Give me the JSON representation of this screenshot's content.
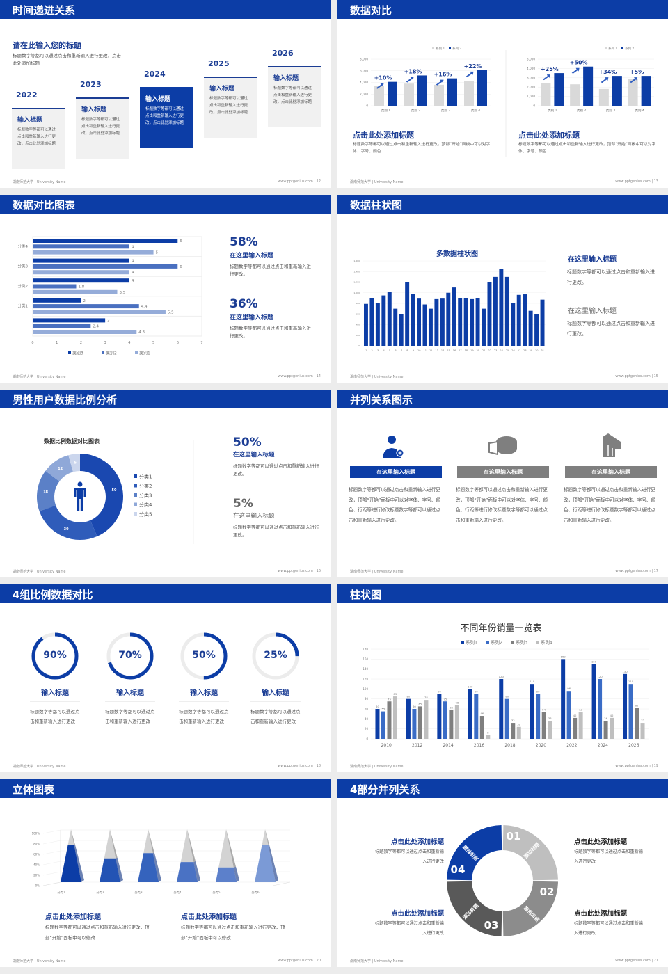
{
  "footer": {
    "left": "湖南师范大学 | University Name",
    "right": "www.pptgenius.com"
  },
  "colors": {
    "brand": "#0c3da6",
    "heading": "#1b3d94",
    "gray": "#7f7f7f",
    "light": "#d9d9d9"
  },
  "slides": [
    {
      "title": "时间递进关系",
      "page": "12",
      "intro_title": "请在此输入您的标题",
      "intro_text": "标题数字等都可以通过点击和重新输入进行更改，点击此处添加标题",
      "items": [
        {
          "year": "2022",
          "title": "输入标题",
          "text": "标题数字等都可以通过点击和重新输入进行更改，点击此处添加标题",
          "active": false
        },
        {
          "year": "2023",
          "title": "输入标题",
          "text": "标题数字等都可以通过点击和重新输入进行更改，点击此处添加标题",
          "active": false
        },
        {
          "year": "2024",
          "title": "输入标题",
          "text": "标题数字等都可以通过点击和重新输入进行更改，点击此处添加标题",
          "active": true
        },
        {
          "year": "2025",
          "title": "输入标题",
          "text": "标题数字等都可以通过点击和重新输入进行更改，点击此处添加标题",
          "active": false
        },
        {
          "year": "2026",
          "title": "输入标题",
          "text": "标题数字等都可以通过点击和重新输入进行更改，点击此处添加标题",
          "active": false
        }
      ]
    },
    {
      "title": "数据对比",
      "page": "13",
      "blocks": [
        {
          "heading": "点击此处添加标题",
          "text": "标题数字等都可以通过点击和重新输入进行更改，顶部“开始”面板中可以对字体、字号、颜色"
        },
        {
          "heading": "点击此处添加标题",
          "text": "标题数字等都可以通过点击和重新输入进行更改，顶部“开始”面板中可以对字体、字号、颜色"
        }
      ]
    },
    {
      "title": "数据对比图表",
      "page": "14",
      "stats": [
        {
          "value": "58%",
          "heading": "在这里输入标题",
          "text": "标题数字等都可以通过点击和重新输入进行更改。"
        },
        {
          "value": "36%",
          "heading": "在这里输入标题",
          "text": "标题数字等都可以通过点击和重新输入进行更改。"
        }
      ]
    },
    {
      "title": "数据柱状图",
      "page": "15",
      "blocks": [
        {
          "heading": "在这里输入标题",
          "text": "标题数字等都可以通过点击和重新输入进行更改。"
        },
        {
          "heading": "在这里输入标题",
          "text": "标题数字等都可以通过点击和重新输入进行更改。"
        }
      ]
    },
    {
      "title": "男性用户数据比例分析",
      "page": "16",
      "stats": [
        {
          "value": "50%",
          "heading": "在这里输入标题",
          "text": "标题数字等都可以通过点击和重新输入进行更改。"
        },
        {
          "value": "5%",
          "heading": "在这里输入标题",
          "text": "标题数字等都可以通过点击和重新输入进行更改。"
        }
      ],
      "icon": "male-person-icon"
    },
    {
      "title": "并列关系图示",
      "page": "17",
      "columns": [
        {
          "icon": "female-user-add-icon",
          "heading": "在这里输入标题",
          "text": "标题数字等都可以通过点击和重新输入进行更改，顶部“开始”面板中可以对字体、字号、颜色、行距等进行修改标题数字等都可以通过点击和重新输入进行更改。",
          "active": true
        },
        {
          "icon": "cheese-pie-icon",
          "heading": "在这里输入标题",
          "text": "标题数字等都可以通过点击和重新输入进行更改，顶部“开始”面板中可以对字体、字号、颜色、行距等进行修改标题数字等都可以通过点击和重新输入进行更改。",
          "active": false
        },
        {
          "icon": "house-chart-icon",
          "heading": "在这里输入标题",
          "text": "标题数字等都可以通过点击和重新输入进行更改，顶部“开始”面板中可以对字体、字号、颜色、行距等进行修改标题数字等都可以通过点击和重新输入进行更改。",
          "active": false
        }
      ]
    },
    {
      "title": "4组比例数据对比",
      "page": "18",
      "rings": [
        {
          "value": 90,
          "label": "90%",
          "heading": "输入标题",
          "text": "标题数字等都可以通过点击和重新输入进行更改"
        },
        {
          "value": 70,
          "label": "70%",
          "heading": "输入标题",
          "text": "标题数字等都可以通过点击和重新输入进行更改"
        },
        {
          "value": 50,
          "label": "50%",
          "heading": "输入标题",
          "text": "标题数字等都可以通过点击和重新输入进行更改"
        },
        {
          "value": 25,
          "label": "25%",
          "heading": "输入标题",
          "text": "标题数字等都可以通过点击和重新输入进行更改"
        }
      ]
    },
    {
      "title": "柱状图",
      "page": "19"
    },
    {
      "title": "立体图表",
      "page": "20",
      "blocks": [
        {
          "heading": "点击此处添加标题",
          "text": "标题数字等都可以通过点击和重新输入进行更改，顶部“开始”面板中可以修改"
        },
        {
          "heading": "点击此处添加标题",
          "text": "标题数字等都可以通过点击和重新输入进行更改，顶部“开始”面板中可以修改"
        }
      ]
    },
    {
      "title": "4部分并列关系",
      "page": "21",
      "segments": [
        {
          "num": "01",
          "label": "添加标题",
          "color": "#bfbfbf"
        },
        {
          "num": "02",
          "label": "添加标题",
          "color": "#8c8c8c"
        },
        {
          "num": "03",
          "label": "添加标题",
          "color": "#595959"
        },
        {
          "num": "04",
          "label": "添加标题",
          "color": "#0c3da6"
        }
      ],
      "blocks": [
        {
          "heading": "点击此处添加标题",
          "text": "标题数字等都可以通过点击和重新输入进行更改",
          "side": "left"
        },
        {
          "heading": "点击此处添加标题",
          "text": "标题数字等都可以通过点击和重新输入进行更改",
          "side": "right"
        },
        {
          "heading": "点击此处添加标题",
          "text": "标题数字等都可以通过点击和重新输入进行更改",
          "side": "left"
        },
        {
          "heading": "点击此处添加标题",
          "text": "标题数字等都可以通过点击和重新输入进行更改",
          "side": "right"
        }
      ]
    }
  ],
  "chart_data": [
    {
      "type": "bar",
      "slide": "13",
      "categories": [
        "类别 1",
        "类别 2",
        "类别 3",
        "类别 4"
      ],
      "series": [
        {
          "name": "系列 1",
          "values": [
            3400,
            3800,
            3600,
            4200
          ],
          "color": "#d9d9d9"
        },
        {
          "name": "系列 2",
          "values": [
            4100,
            5200,
            4700,
            6100
          ],
          "color": "#0c3da6"
        }
      ],
      "annotations": [
        "+10%",
        "+18%",
        "+16%",
        "+22%"
      ],
      "yticks": [
        0,
        2000,
        4000,
        6000,
        8000
      ],
      "ylim": [
        0,
        8000
      ],
      "legend": "top-right"
    },
    {
      "type": "bar",
      "slide": "13",
      "categories": [
        "类别 1",
        "类别 2",
        "类别 3",
        "类别 4"
      ],
      "series": [
        {
          "name": "系列 1",
          "values": [
            2450,
            2300,
            1800,
            2900
          ],
          "color": "#d9d9d9"
        },
        {
          "name": "系列 2",
          "values": [
            3500,
            4200,
            3200,
            3200
          ],
          "color": "#0c3da6"
        }
      ],
      "annotations": [
        "+25%",
        "+50%",
        "+34%",
        "+5%"
      ],
      "yticks": [
        0,
        1000,
        2000,
        3000,
        4000,
        5000
      ],
      "ylim": [
        0,
        5000
      ],
      "legend": "top-right"
    },
    {
      "type": "bar",
      "orientation": "horizontal",
      "slide": "14",
      "categories": [
        "分类4",
        "分类3",
        "分类2",
        "分类1",
        ""
      ],
      "series": [
        {
          "name": "类别3",
          "values": [
            6,
            4,
            4,
            2,
            3
          ],
          "color": "#0c3da6"
        },
        {
          "name": "类别2",
          "values": [
            4,
            6,
            1.8,
            4.4,
            2.4
          ],
          "color": "#4a70c0"
        },
        {
          "name": "类别1",
          "values": [
            5,
            4,
            3.5,
            5.5,
            4.3
          ],
          "color": "#95acd9"
        }
      ],
      "xlim": [
        0,
        7
      ],
      "xticks": [
        0,
        1,
        2,
        3,
        4,
        5,
        6,
        7
      ],
      "legend": "bottom",
      "data_labels": true
    },
    {
      "type": "bar",
      "slide": "15",
      "title": "多数据柱状图",
      "categories": [
        "1",
        "2",
        "3",
        "4",
        "5",
        "6",
        "7",
        "8",
        "9",
        "10",
        "11",
        "12",
        "13",
        "14",
        "15",
        "16",
        "17",
        "18",
        "19",
        "20",
        "21",
        "22",
        "23",
        "24",
        "25",
        "26",
        "27",
        "28",
        "29",
        "30",
        "31"
      ],
      "values": [
        790,
        900,
        800,
        950,
        1020,
        700,
        600,
        1200,
        980,
        890,
        780,
        700,
        880,
        890,
        1000,
        1100,
        900,
        900,
        880,
        900,
        700,
        1200,
        1300,
        1450,
        1300,
        800,
        960,
        970,
        660,
        590,
        870
      ],
      "ylim": [
        0,
        1600
      ],
      "yticks": [
        0,
        200,
        400,
        600,
        800,
        1000,
        1200,
        1400,
        1600
      ],
      "color": "#0c3da6"
    },
    {
      "type": "pie",
      "variant": "donut",
      "slide": "16",
      "title": "数据比例数据对比图表",
      "categories": [
        "分类1",
        "分类2",
        "分类3",
        "分类4",
        "分类5"
      ],
      "values": [
        50,
        30,
        18,
        12,
        5
      ],
      "colors": [
        "#1a48b0",
        "#2f5cba",
        "#5b80c7",
        "#8fa8d8",
        "#cbd6ed"
      ],
      "legend": "right"
    },
    {
      "type": "bar",
      "slide": "19",
      "title": "不同年份销量一览表",
      "categories": [
        "2010",
        "2012",
        "2014",
        "2016",
        "2018",
        "2020",
        "2022",
        "2024",
        "2026"
      ],
      "series": [
        {
          "name": "系列1",
          "values": [
            60,
            80,
            90,
            100,
            120,
            110,
            160,
            150,
            130
          ],
          "color": "#0c3da6"
        },
        {
          "name": "系列2",
          "values": [
            55,
            60,
            75,
            90,
            80,
            90,
            96,
            120,
            110
          ],
          "color": "#3a6cc6"
        },
        {
          "name": "系列3",
          "values": [
            75,
            65,
            58,
            46,
            32,
            54,
            42,
            36,
            62
          ],
          "color": "#7f7f7f"
        },
        {
          "name": "系列4",
          "values": [
            85,
            78,
            68,
            8,
            24,
            36,
            53,
            42,
            32
          ],
          "color": "#bfbfbf"
        }
      ],
      "ylim": [
        0,
        180
      ],
      "yticks": [
        0,
        20,
        40,
        60,
        80,
        100,
        120,
        140,
        160,
        180
      ],
      "legend": "top",
      "data_labels": true
    },
    {
      "type": "bar",
      "variant": "3d-pyramid",
      "slide": "20",
      "categories": [
        "分类1",
        "分类2",
        "分类3",
        "分类4",
        "分类5",
        "分类6"
      ],
      "values": [
        70,
        45,
        55,
        38,
        28,
        70
      ],
      "total": 100,
      "ylim": [
        0,
        100
      ],
      "yticks": [
        "0%",
        "20%",
        "40%",
        "60%",
        "80%",
        "100%"
      ],
      "colors": [
        "#0c3da6",
        "#2353b4",
        "#3563bd",
        "#4a72c4",
        "#5c80cb",
        "#7b9ad6"
      ]
    }
  ]
}
